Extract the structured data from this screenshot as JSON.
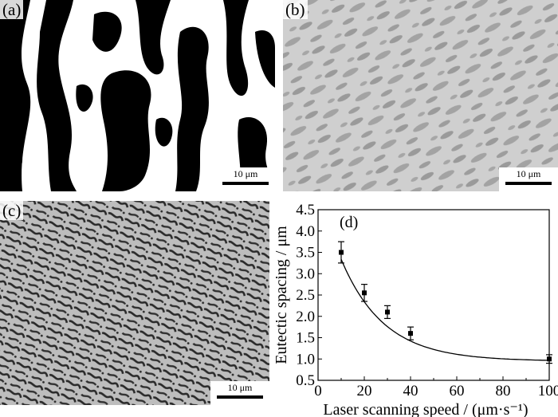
{
  "panels": [
    {
      "label": "(a)",
      "scale_text": "10 μm"
    },
    {
      "label": "(b)",
      "scale_text": "10 μm"
    },
    {
      "label": "(c)",
      "scale_text": "10 μm"
    }
  ],
  "chart_data": {
    "type": "scatter",
    "panel_label": "(d)",
    "xlabel": "Laser scanning speed / (μm·s⁻¹)",
    "ylabel": "Eutectic spacing / μm",
    "xlim": [
      0,
      100
    ],
    "ylim": [
      0.5,
      4.5
    ],
    "xticks": [
      0,
      20,
      40,
      60,
      80,
      100
    ],
    "yticks": [
      0.5,
      1.0,
      1.5,
      2.0,
      2.5,
      3.0,
      3.5,
      4.0,
      4.5
    ],
    "xtick_labels": [
      "0",
      "20",
      "40",
      "60",
      "80",
      "100"
    ],
    "ytick_labels": [
      "0.5",
      "1.0",
      "1.5",
      "2.0",
      "2.5",
      "3.0",
      "3.5",
      "4.0",
      "4.5"
    ],
    "series": [
      {
        "x": [
          10,
          20,
          30,
          40,
          100
        ],
        "y": [
          3.5,
          2.55,
          2.1,
          1.6,
          1.0
        ],
        "yerr": [
          0.25,
          0.2,
          0.15,
          0.15,
          0.1
        ]
      }
    ],
    "fit_curve": true,
    "grid": false,
    "colors": {
      "marker": "#000000",
      "line": "#000000"
    }
  }
}
